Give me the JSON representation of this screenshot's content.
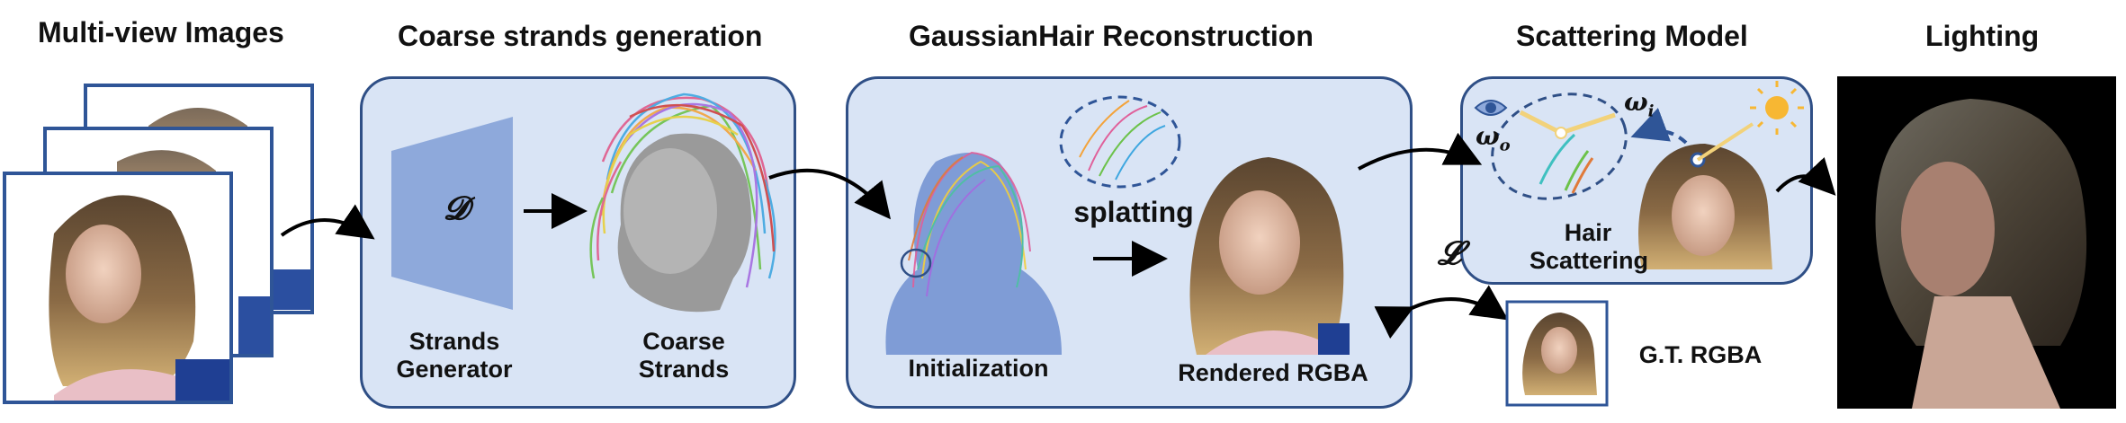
{
  "titles": {
    "multiview": "Multi-view Images",
    "coarse": "Coarse strands generation",
    "gaussian": "GaussianHair Reconstruction",
    "scattering": "Scattering Model",
    "lighting": "Lighting"
  },
  "labels": {
    "strands_generator": "Strands\nGenerator",
    "coarse_strands": "Coarse\nStrands",
    "initialization": "Initialization",
    "rendered_rgba": "Rendered RGBA",
    "splatting": "splatting",
    "hair_scattering": "Hair\nScattering",
    "gt_rgba": "G.T. RGBA",
    "decoder_symbol": "𝓓",
    "loss_symbol": "𝓛",
    "omega_o": "ω",
    "omega_o_sub": "o",
    "omega_i": "ω",
    "omega_i_sub": "i"
  },
  "colors": {
    "panel_fill": "#d9e4f5",
    "panel_border": "#2f4f86",
    "frame_border": "#2f5597",
    "generator_fill": "#8ea9db",
    "sun": "#f7b733",
    "ray": "#f2d27a"
  }
}
